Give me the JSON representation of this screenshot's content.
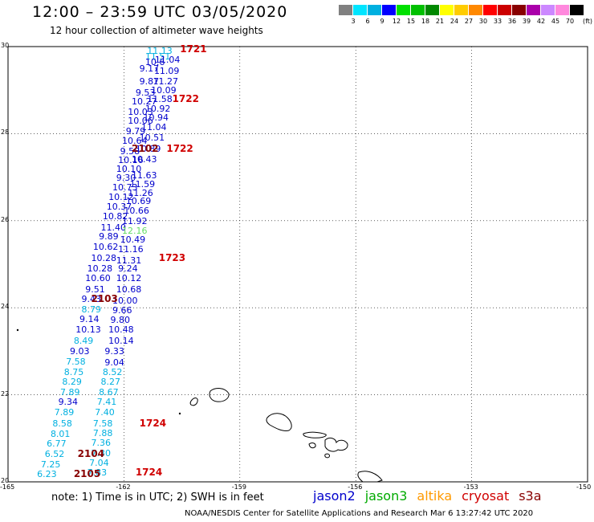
{
  "header": {
    "title": "12:00 – 23:59 UTC 03/05/2020",
    "subtitle": "12 hour collection of altimeter wave heights"
  },
  "legend": {
    "unit": "(ft)",
    "scale": [
      {
        "label": "3",
        "color": "#808080"
      },
      {
        "label": "6",
        "color": "#00e5ff"
      },
      {
        "label": "9",
        "color": "#00b0e0"
      },
      {
        "label": "12",
        "color": "#0000ff"
      },
      {
        "label": "15",
        "color": "#00e000"
      },
      {
        "label": "18",
        "color": "#00c000"
      },
      {
        "label": "21",
        "color": "#008800"
      },
      {
        "label": "24",
        "color": "#ffff00"
      },
      {
        "label": "27",
        "color": "#ffcc00"
      },
      {
        "label": "30",
        "color": "#ff8800"
      },
      {
        "label": "33",
        "color": "#ff0000"
      },
      {
        "label": "36",
        "color": "#cc0000"
      },
      {
        "label": "39",
        "color": "#880000"
      },
      {
        "label": "42",
        "color": "#aa00aa"
      },
      {
        "label": "45",
        "color": "#cc88ff"
      },
      {
        "label": "70",
        "color": "#ff88dd"
      },
      {
        "label": "",
        "color": "#000000"
      }
    ]
  },
  "map": {
    "lon_range": [
      -165,
      -150
    ],
    "lat_range": [
      20,
      30
    ],
    "lon_ticks": [
      "-165",
      "-162",
      "-159",
      "-156",
      "-153",
      "-150"
    ],
    "lat_ticks": [
      "20",
      "22",
      "24",
      "26",
      "28",
      "30"
    ]
  },
  "colors": {
    "jason2": "#0000cc",
    "jason3": "#00aa00",
    "altika": "#ff9900",
    "cryosat": "#d00000",
    "s3a": "#880000",
    "light": "#00b0e0",
    "green": "#66dd66",
    "pass": "#d00000",
    "dark_pass": "#880000"
  },
  "wave_heights": [
    {
      "v": "11.13",
      "lon": -161.4,
      "lat": 29.9,
      "c": "light"
    },
    {
      "v": "11.51",
      "lon": -161.45,
      "lat": 29.78,
      "c": "light"
    },
    {
      "v": "11.04",
      "lon": -161.2,
      "lat": 29.7,
      "c": "jason2"
    },
    {
      "v": "10.6",
      "lon": -161.45,
      "lat": 29.65,
      "c": "jason2"
    },
    {
      "v": "11.09",
      "lon": -161.22,
      "lat": 29.45,
      "c": "jason2"
    },
    {
      "v": "9.17",
      "lon": -161.6,
      "lat": 29.5,
      "c": "jason2"
    },
    {
      "v": "11.27",
      "lon": -161.25,
      "lat": 29.2,
      "c": "jason2"
    },
    {
      "v": "9.87",
      "lon": -161.6,
      "lat": 29.2,
      "c": "jason2"
    },
    {
      "v": "10.09",
      "lon": -161.3,
      "lat": 29.0,
      "c": "jason2"
    },
    {
      "v": "9.53",
      "lon": -161.7,
      "lat": 28.95,
      "c": "jason2"
    },
    {
      "v": "11.58",
      "lon": -161.4,
      "lat": 28.8,
      "c": "jason2"
    },
    {
      "v": "10.27",
      "lon": -161.8,
      "lat": 28.75,
      "c": "jason2"
    },
    {
      "v": "10.92",
      "lon": -161.45,
      "lat": 28.58,
      "c": "jason2"
    },
    {
      "v": "10.03",
      "lon": -161.9,
      "lat": 28.5,
      "c": "jason2"
    },
    {
      "v": "10.94",
      "lon": -161.5,
      "lat": 28.38,
      "c": "jason2"
    },
    {
      "v": "10.06",
      "lon": -161.9,
      "lat": 28.3,
      "c": "jason2"
    },
    {
      "v": "11.04",
      "lon": -161.55,
      "lat": 28.15,
      "c": "jason2"
    },
    {
      "v": "9.79",
      "lon": -161.95,
      "lat": 28.07,
      "c": "jason2"
    },
    {
      "v": "10.51",
      "lon": -161.6,
      "lat": 27.92,
      "c": "jason2"
    },
    {
      "v": "10.64",
      "lon": -162.05,
      "lat": 27.85,
      "c": "jason2"
    },
    {
      "v": "10.89",
      "lon": -161.7,
      "lat": 27.65,
      "c": "jason2"
    },
    {
      "v": "9.58",
      "lon": -162.1,
      "lat": 27.6,
      "c": "jason2"
    },
    {
      "v": "10.16",
      "lon": -162.15,
      "lat": 27.4,
      "c": "jason2"
    },
    {
      "v": "10.43",
      "lon": -161.8,
      "lat": 27.42,
      "c": "jason2"
    },
    {
      "v": "10.10",
      "lon": -162.2,
      "lat": 27.2,
      "c": "jason2"
    },
    {
      "v": "11.63",
      "lon": -161.8,
      "lat": 27.05,
      "c": "jason2"
    },
    {
      "v": "9.30",
      "lon": -162.2,
      "lat": 27.0,
      "c": "jason2"
    },
    {
      "v": "11.59",
      "lon": -161.85,
      "lat": 26.85,
      "c": "jason2"
    },
    {
      "v": "10.73",
      "lon": -162.3,
      "lat": 26.78,
      "c": "jason2"
    },
    {
      "v": "11.26",
      "lon": -161.9,
      "lat": 26.65,
      "c": "jason2"
    },
    {
      "v": "10.12",
      "lon": -162.4,
      "lat": 26.55,
      "c": "jason2"
    },
    {
      "v": "10.69",
      "lon": -161.95,
      "lat": 26.45,
      "c": "jason2"
    },
    {
      "v": "10.37",
      "lon": -162.45,
      "lat": 26.33,
      "c": "jason2"
    },
    {
      "v": "10.66",
      "lon": -162.0,
      "lat": 26.23,
      "c": "jason2"
    },
    {
      "v": "10.82",
      "lon": -162.55,
      "lat": 26.1,
      "c": "jason2"
    },
    {
      "v": "11.92",
      "lon": -162.05,
      "lat": 26.0,
      "c": "jason2"
    },
    {
      "v": "11.40",
      "lon": -162.6,
      "lat": 25.85,
      "c": "jason2"
    },
    {
      "v": "12.16",
      "lon": -162.05,
      "lat": 25.78,
      "c": "green"
    },
    {
      "v": "9.89",
      "lon": -162.65,
      "lat": 25.65,
      "c": "jason2"
    },
    {
      "v": "10.49",
      "lon": -162.1,
      "lat": 25.58,
      "c": "jason2"
    },
    {
      "v": "10.62",
      "lon": -162.8,
      "lat": 25.4,
      "c": "jason2"
    },
    {
      "v": "11.16",
      "lon": -162.15,
      "lat": 25.35,
      "c": "jason2"
    },
    {
      "v": "10.28",
      "lon": -162.85,
      "lat": 25.15,
      "c": "jason2"
    },
    {
      "v": "11.31",
      "lon": -162.2,
      "lat": 25.1,
      "c": "jason2"
    },
    {
      "v": "10.28",
      "lon": -162.95,
      "lat": 24.9,
      "c": "jason2"
    },
    {
      "v": "9.24",
      "lon": -162.15,
      "lat": 24.9,
      "c": "jason2"
    },
    {
      "v": "10.60",
      "lon": -163.0,
      "lat": 24.68,
      "c": "jason2"
    },
    {
      "v": "10.12",
      "lon": -162.2,
      "lat": 24.68,
      "c": "jason2"
    },
    {
      "v": "9.51",
      "lon": -163.0,
      "lat": 24.42,
      "c": "jason2"
    },
    {
      "v": "10.68",
      "lon": -162.2,
      "lat": 24.42,
      "c": "jason2"
    },
    {
      "v": "9.43",
      "lon": -163.1,
      "lat": 24.2,
      "c": "jason2"
    },
    {
      "v": "10.00",
      "lon": -162.3,
      "lat": 24.17,
      "c": "jason2"
    },
    {
      "v": "8.79",
      "lon": -163.1,
      "lat": 23.97,
      "c": "light"
    },
    {
      "v": "9.66",
      "lon": -162.3,
      "lat": 23.95,
      "c": "jason2"
    },
    {
      "v": "9.14",
      "lon": -163.15,
      "lat": 23.74,
      "c": "jason2"
    },
    {
      "v": "9.80",
      "lon": -162.35,
      "lat": 23.72,
      "c": "jason2"
    },
    {
      "v": "10.13",
      "lon": -163.25,
      "lat": 23.5,
      "c": "jason2"
    },
    {
      "v": "10.48",
      "lon": -162.4,
      "lat": 23.5,
      "c": "jason2"
    },
    {
      "v": "8.49",
      "lon": -163.3,
      "lat": 23.25,
      "c": "light"
    },
    {
      "v": "10.14",
      "lon": -162.4,
      "lat": 23.25,
      "c": "jason2"
    },
    {
      "v": "9.03",
      "lon": -163.4,
      "lat": 23.0,
      "c": "jason2"
    },
    {
      "v": "9.33",
      "lon": -162.5,
      "lat": 23.0,
      "c": "jason2"
    },
    {
      "v": "7.58",
      "lon": -163.5,
      "lat": 22.76,
      "c": "light"
    },
    {
      "v": "9.04",
      "lon": -162.5,
      "lat": 22.75,
      "c": "jason2"
    },
    {
      "v": "8.75",
      "lon": -163.55,
      "lat": 22.53,
      "c": "light"
    },
    {
      "v": "8.52",
      "lon": -162.55,
      "lat": 22.53,
      "c": "light"
    },
    {
      "v": "8.29",
      "lon": -163.6,
      "lat": 22.3,
      "c": "light"
    },
    {
      "v": "8.27",
      "lon": -162.6,
      "lat": 22.3,
      "c": "light"
    },
    {
      "v": "7.89",
      "lon": -163.65,
      "lat": 22.06,
      "c": "light"
    },
    {
      "v": "8.67",
      "lon": -162.65,
      "lat": 22.06,
      "c": "light"
    },
    {
      "v": "9.34",
      "lon": -163.7,
      "lat": 21.85,
      "c": "jason2"
    },
    {
      "v": "7.41",
      "lon": -162.7,
      "lat": 21.85,
      "c": "light"
    },
    {
      "v": "7.89",
      "lon": -163.8,
      "lat": 21.6,
      "c": "light"
    },
    {
      "v": "7.40",
      "lon": -162.75,
      "lat": 21.6,
      "c": "light"
    },
    {
      "v": "8.58",
      "lon": -163.85,
      "lat": 21.35,
      "c": "light"
    },
    {
      "v": "7.58",
      "lon": -162.8,
      "lat": 21.35,
      "c": "light"
    },
    {
      "v": "8.01",
      "lon": -163.9,
      "lat": 21.1,
      "c": "light"
    },
    {
      "v": "7.88",
      "lon": -162.8,
      "lat": 21.13,
      "c": "light"
    },
    {
      "v": "6.77",
      "lon": -164.0,
      "lat": 20.88,
      "c": "light"
    },
    {
      "v": "7.36",
      "lon": -162.85,
      "lat": 20.9,
      "c": "light"
    },
    {
      "v": "6.52",
      "lon": -164.05,
      "lat": 20.64,
      "c": "light"
    },
    {
      "v": "7.30",
      "lon": -162.85,
      "lat": 20.67,
      "c": "light"
    },
    {
      "v": "7.25",
      "lon": -164.15,
      "lat": 20.4,
      "c": "light"
    },
    {
      "v": "7.04",
      "lon": -162.9,
      "lat": 20.45,
      "c": "light"
    },
    {
      "v": "6.23",
      "lon": -164.25,
      "lat": 20.18,
      "c": "light"
    },
    {
      "v": "7.83",
      "lon": -162.95,
      "lat": 20.22,
      "c": "light"
    }
  ],
  "pass_labels": [
    {
      "v": "1721",
      "lon": -160.55,
      "lat": 29.95,
      "c": "pass"
    },
    {
      "v": "1722",
      "lon": -160.75,
      "lat": 28.8,
      "c": "pass"
    },
    {
      "v": "2102",
      "lon": -161.8,
      "lat": 27.65,
      "c": "dark_pass"
    },
    {
      "v": "1722",
      "lon": -160.9,
      "lat": 27.65,
      "c": "pass"
    },
    {
      "v": "1723",
      "lon": -161.1,
      "lat": 25.15,
      "c": "pass"
    },
    {
      "v": "2103",
      "lon": -162.85,
      "lat": 24.2,
      "c": "dark_pass"
    },
    {
      "v": "1724",
      "lon": -161.6,
      "lat": 21.35,
      "c": "pass"
    },
    {
      "v": "2104",
      "lon": -163.2,
      "lat": 20.64,
      "c": "dark_pass"
    },
    {
      "v": "1724",
      "lon": -161.7,
      "lat": 20.22,
      "c": "pass"
    },
    {
      "v": "2105",
      "lon": -163.3,
      "lat": 20.18,
      "c": "dark_pass"
    }
  ],
  "note": "note: 1) Time is in UTC; 2) SWH is in feet",
  "satellites": [
    {
      "name": "jason2",
      "c": "jason2"
    },
    {
      "name": "jason3",
      "c": "jason3"
    },
    {
      "name": "altika",
      "c": "altika"
    },
    {
      "name": "cryosat",
      "c": "cryosat"
    },
    {
      "name": "s3a",
      "c": "s3a"
    }
  ],
  "footer": "NOAA/NESDIS Center for Satellite Applications and Research   Mar  6 13:27:42 UTC 2020"
}
